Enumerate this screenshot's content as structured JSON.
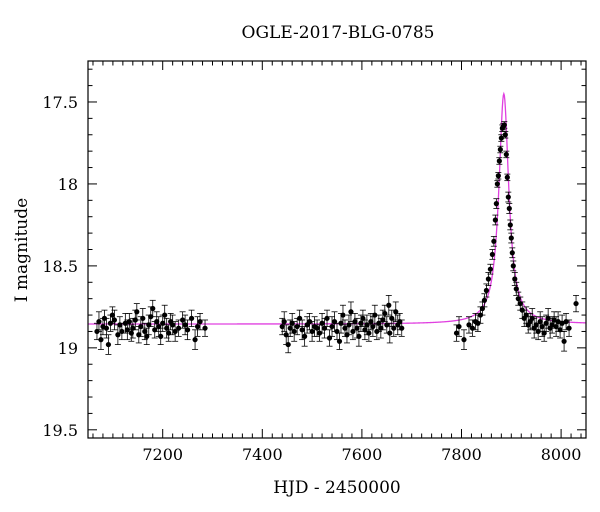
{
  "chart_data": {
    "type": "scatter",
    "title": "OGLE-2017-BLG-0785",
    "xlabel": "HJD - 2450000",
    "ylabel": "I magnitude",
    "xlim": [
      7050,
      8050
    ],
    "ylim": [
      19.55,
      17.25
    ],
    "y_inverted": true,
    "xticks": [
      7200,
      7400,
      7600,
      7800,
      8000
    ],
    "yticks": [
      17.5,
      18,
      18.5,
      19,
      19.5
    ],
    "ytick_labels": [
      "17.5",
      "18",
      "18.5",
      "19",
      "19.5"
    ],
    "grid": false,
    "colors": {
      "points": "#000000",
      "model": "#e040e0"
    },
    "model": {
      "baseline": 18.855,
      "t0": 7885,
      "peak_mag": 17.45,
      "width_days": 12
    },
    "series": [
      {
        "type": "errorbar_points",
        "points": [
          [
            7068,
            18.9,
            0.05
          ],
          [
            7072,
            18.84,
            0.06
          ],
          [
            7076,
            18.95,
            0.06
          ],
          [
            7080,
            18.87,
            0.05
          ],
          [
            7083,
            18.82,
            0.05
          ],
          [
            7087,
            18.88,
            0.06
          ],
          [
            7091,
            18.98,
            0.06
          ],
          [
            7095,
            18.85,
            0.05
          ],
          [
            7099,
            18.8,
            0.05
          ],
          [
            7103,
            18.83,
            0.06
          ],
          [
            7110,
            18.92,
            0.06
          ],
          [
            7114,
            18.86,
            0.05
          ],
          [
            7118,
            18.9,
            0.05
          ],
          [
            7125,
            18.85,
            0.06
          ],
          [
            7129,
            18.89,
            0.06
          ],
          [
            7133,
            18.84,
            0.05
          ],
          [
            7137,
            18.91,
            0.05
          ],
          [
            7140,
            18.88,
            0.06
          ],
          [
            7145,
            18.83,
            0.06
          ],
          [
            7148,
            18.78,
            0.05
          ],
          [
            7152,
            18.92,
            0.05
          ],
          [
            7156,
            18.87,
            0.06
          ],
          [
            7160,
            18.82,
            0.06
          ],
          [
            7164,
            18.9,
            0.05
          ],
          [
            7168,
            18.93,
            0.05
          ],
          [
            7172,
            18.86,
            0.06
          ],
          [
            7176,
            18.81,
            0.06
          ],
          [
            7180,
            18.76,
            0.05
          ],
          [
            7184,
            18.89,
            0.05
          ],
          [
            7188,
            18.84,
            0.06
          ],
          [
            7192,
            18.87,
            0.06
          ],
          [
            7196,
            18.93,
            0.05
          ],
          [
            7200,
            18.85,
            0.05
          ],
          [
            7204,
            18.8,
            0.06
          ],
          [
            7208,
            18.88,
            0.06
          ],
          [
            7212,
            18.91,
            0.05
          ],
          [
            7216,
            18.84,
            0.05
          ],
          [
            7220,
            18.86,
            0.06
          ],
          [
            7225,
            18.9,
            0.06
          ],
          [
            7232,
            18.88,
            0.05
          ],
          [
            7240,
            18.83,
            0.05
          ],
          [
            7245,
            18.86,
            0.06
          ],
          [
            7250,
            18.89,
            0.06
          ],
          [
            7258,
            18.82,
            0.05
          ],
          [
            7265,
            18.95,
            0.06
          ],
          [
            7270,
            18.87,
            0.06
          ],
          [
            7275,
            18.84,
            0.05
          ],
          [
            7285,
            18.88,
            0.05
          ],
          [
            7440,
            18.87,
            0.05
          ],
          [
            7444,
            18.84,
            0.06
          ],
          [
            7448,
            18.92,
            0.06
          ],
          [
            7452,
            18.98,
            0.05
          ],
          [
            7456,
            18.88,
            0.05
          ],
          [
            7460,
            18.85,
            0.06
          ],
          [
            7464,
            18.9,
            0.06
          ],
          [
            7470,
            18.87,
            0.05
          ],
          [
            7475,
            18.82,
            0.05
          ],
          [
            7480,
            18.89,
            0.06
          ],
          [
            7485,
            18.93,
            0.06
          ],
          [
            7490,
            18.86,
            0.05
          ],
          [
            7495,
            18.84,
            0.05
          ],
          [
            7500,
            18.9,
            0.06
          ],
          [
            7505,
            18.87,
            0.06
          ],
          [
            7510,
            18.88,
            0.05
          ],
          [
            7515,
            18.91,
            0.05
          ],
          [
            7520,
            18.85,
            0.06
          ],
          [
            7525,
            18.88,
            0.06
          ],
          [
            7530,
            18.82,
            0.05
          ],
          [
            7535,
            18.94,
            0.05
          ],
          [
            7540,
            18.87,
            0.06
          ],
          [
            7545,
            18.84,
            0.06
          ],
          [
            7550,
            18.9,
            0.05
          ],
          [
            7555,
            18.96,
            0.05
          ],
          [
            7558,
            18.85,
            0.06
          ],
          [
            7562,
            18.8,
            0.06
          ],
          [
            7566,
            18.88,
            0.05
          ],
          [
            7570,
            18.92,
            0.05
          ],
          [
            7574,
            18.86,
            0.06
          ],
          [
            7578,
            18.78,
            0.06
          ],
          [
            7582,
            18.9,
            0.05
          ],
          [
            7586,
            18.84,
            0.05
          ],
          [
            7590,
            18.88,
            0.06
          ],
          [
            7594,
            18.93,
            0.06
          ],
          [
            7598,
            18.85,
            0.05
          ],
          [
            7602,
            18.82,
            0.05
          ],
          [
            7606,
            18.89,
            0.06
          ],
          [
            7610,
            18.86,
            0.06
          ],
          [
            7614,
            18.91,
            0.05
          ],
          [
            7618,
            18.84,
            0.05
          ],
          [
            7622,
            18.87,
            0.06
          ],
          [
            7626,
            18.8,
            0.06
          ],
          [
            7630,
            18.9,
            0.05
          ],
          [
            7634,
            18.85,
            0.05
          ],
          [
            7638,
            18.88,
            0.06
          ],
          [
            7642,
            18.83,
            0.06
          ],
          [
            7646,
            18.79,
            0.05
          ],
          [
            7650,
            18.86,
            0.05
          ],
          [
            7654,
            18.74,
            0.06
          ],
          [
            7656,
            18.91,
            0.06
          ],
          [
            7660,
            18.82,
            0.05
          ],
          [
            7664,
            18.88,
            0.05
          ],
          [
            7668,
            18.78,
            0.06
          ],
          [
            7672,
            18.86,
            0.06
          ],
          [
            7676,
            18.84,
            0.05
          ],
          [
            7680,
            18.88,
            0.05
          ],
          [
            7790,
            18.91,
            0.05
          ],
          [
            7795,
            18.87,
            0.06
          ],
          [
            7805,
            18.95,
            0.06
          ],
          [
            7815,
            18.86,
            0.05
          ],
          [
            7822,
            18.88,
            0.05
          ],
          [
            7828,
            18.84,
            0.05
          ],
          [
            7833,
            18.85,
            0.05
          ],
          [
            7838,
            18.8,
            0.05
          ],
          [
            7842,
            18.76,
            0.04
          ],
          [
            7846,
            18.71,
            0.04
          ],
          [
            7850,
            18.65,
            0.04
          ],
          [
            7854,
            18.58,
            0.04
          ],
          [
            7858,
            18.52,
            0.03
          ],
          [
            7862,
            18.43,
            0.03
          ],
          [
            7865,
            18.35,
            0.03
          ],
          [
            7868,
            18.22,
            0.03
          ],
          [
            7870,
            18.12,
            0.03
          ],
          [
            7872,
            18.0,
            0.02
          ],
          [
            7874,
            17.95,
            0.02
          ],
          [
            7876,
            17.86,
            0.02
          ],
          [
            7878,
            17.79,
            0.02
          ],
          [
            7880,
            17.72,
            0.02
          ],
          [
            7882,
            17.66,
            0.02
          ],
          [
            7884,
            17.65,
            0.02
          ],
          [
            7886,
            17.64,
            0.02
          ],
          [
            7888,
            17.7,
            0.02
          ],
          [
            7890,
            17.82,
            0.02
          ],
          [
            7892,
            17.96,
            0.02
          ],
          [
            7894,
            18.08,
            0.03
          ],
          [
            7896,
            18.15,
            0.03
          ],
          [
            7898,
            18.25,
            0.03
          ],
          [
            7900,
            18.33,
            0.03
          ],
          [
            7902,
            18.42,
            0.03
          ],
          [
            7904,
            18.5,
            0.03
          ],
          [
            7907,
            18.58,
            0.04
          ],
          [
            7910,
            18.64,
            0.04
          ],
          [
            7914,
            18.7,
            0.04
          ],
          [
            7918,
            18.73,
            0.04
          ],
          [
            7922,
            18.77,
            0.05
          ],
          [
            7926,
            18.82,
            0.05
          ],
          [
            7930,
            18.8,
            0.05
          ],
          [
            7934,
            18.86,
            0.05
          ],
          [
            7938,
            18.84,
            0.05
          ],
          [
            7942,
            18.82,
            0.06
          ],
          [
            7946,
            18.88,
            0.06
          ],
          [
            7950,
            18.86,
            0.05
          ],
          [
            7954,
            18.9,
            0.05
          ],
          [
            7958,
            18.84,
            0.06
          ],
          [
            7962,
            18.87,
            0.06
          ],
          [
            7966,
            18.91,
            0.05
          ],
          [
            7970,
            18.85,
            0.05
          ],
          [
            7974,
            18.82,
            0.06
          ],
          [
            7978,
            18.88,
            0.06
          ],
          [
            7982,
            18.86,
            0.05
          ],
          [
            7986,
            18.83,
            0.05
          ],
          [
            7990,
            18.87,
            0.06
          ],
          [
            7994,
            18.84,
            0.06
          ],
          [
            7998,
            18.89,
            0.05
          ],
          [
            8002,
            18.85,
            0.05
          ],
          [
            8006,
            18.96,
            0.06
          ],
          [
            8010,
            18.84,
            0.05
          ],
          [
            8016,
            18.88,
            0.05
          ],
          [
            8030,
            18.73,
            0.05
          ]
        ]
      }
    ]
  }
}
